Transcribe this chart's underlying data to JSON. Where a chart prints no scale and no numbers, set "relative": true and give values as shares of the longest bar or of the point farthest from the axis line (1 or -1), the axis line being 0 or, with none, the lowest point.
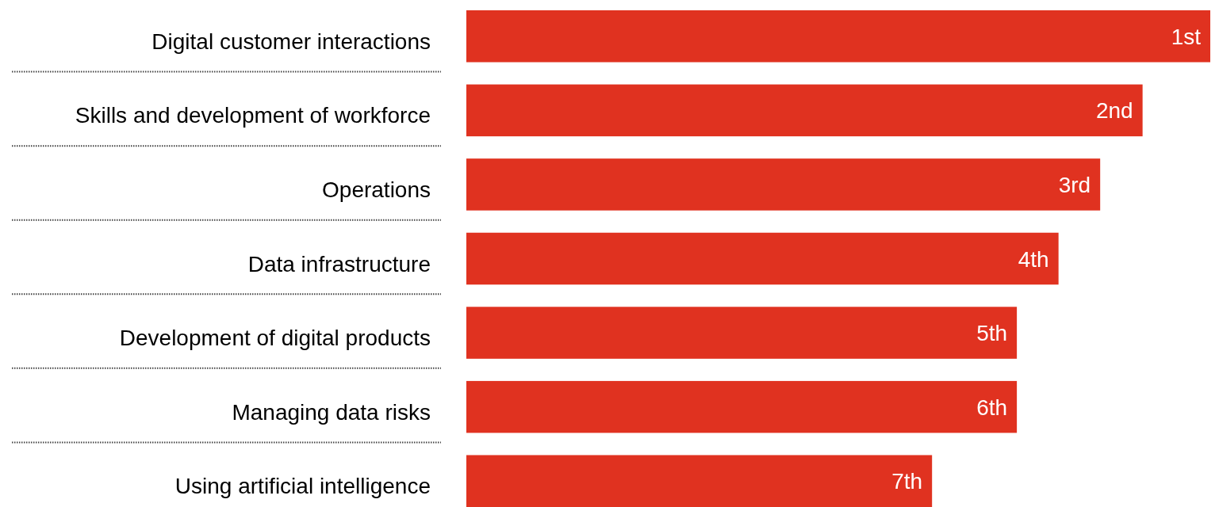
{
  "chart_data": {
    "type": "bar",
    "orientation": "horizontal",
    "relative": true,
    "categories": [
      "Digital customer interactions",
      "Skills and development of workforce",
      "Operations",
      "Data infrastructure",
      "Development of digital products",
      "Managing data risks",
      "Using artificial intelligence"
    ],
    "values": [
      1,
      0.909,
      0.852,
      0.796,
      0.74,
      0.74,
      0.626
    ],
    "annotations": [
      {
        "text": "1st",
        "x": 1,
        "y": "Digital customer interactions"
      },
      {
        "text": "2nd",
        "x": 0.909,
        "y": "Skills and development of workforce"
      },
      {
        "text": "3rd",
        "x": 0.852,
        "y": "Operations"
      },
      {
        "text": "4th",
        "x": 0.796,
        "y": "Data infrastructure"
      },
      {
        "text": "5th",
        "x": 0.74,
        "y": "Development of digital products"
      },
      {
        "text": "6th",
        "x": 0.74,
        "y": "Managing data risks"
      },
      {
        "text": "7th",
        "x": 0.626,
        "y": "Using artificial intelligence"
      }
    ],
    "color": "#e03220"
  }
}
